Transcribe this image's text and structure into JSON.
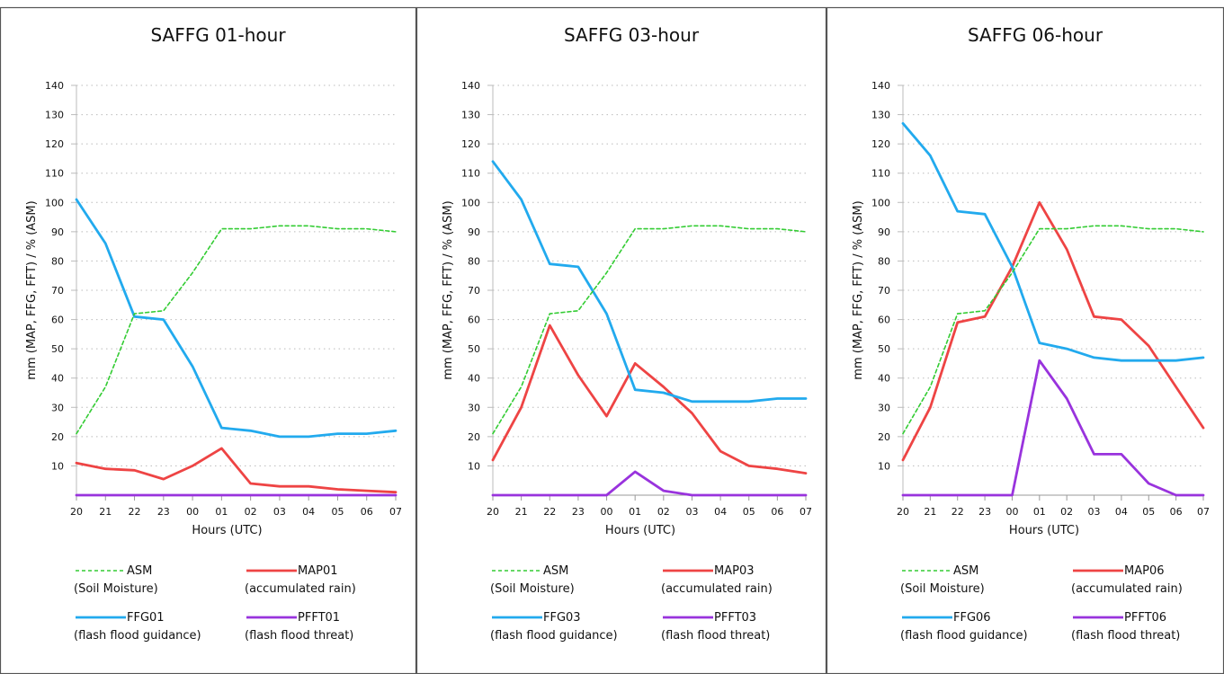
{
  "layout": {
    "columns": 3
  },
  "chart_data": [
    {
      "type": "line",
      "title": "SAFFG 01-hour",
      "xlabel": "Hours (UTC)",
      "ylabel": "mm (MAP, FFG, FFT) / % (ASM)",
      "categories": [
        "20",
        "21",
        "22",
        "23",
        "00",
        "01",
        "02",
        "03",
        "04",
        "05",
        "06",
        "07"
      ],
      "ylim": [
        0,
        140
      ],
      "yticks": [
        10,
        20,
        30,
        40,
        50,
        60,
        70,
        80,
        90,
        100,
        110,
        120,
        130,
        140
      ],
      "grid": "horizontal dotted",
      "series": [
        {
          "key": "asm",
          "name": "ASM",
          "desc": "(Soil Moisture)",
          "color": "#33cc33",
          "dashed": true,
          "values": [
            21,
            37,
            62,
            63,
            76,
            91,
            91,
            92,
            92,
            91,
            91,
            90
          ]
        },
        {
          "key": "map",
          "name": "MAP01",
          "desc": "(accumulated rain)",
          "color": "#ee4444",
          "dashed": false,
          "values": [
            11,
            9,
            8.5,
            5.5,
            10,
            16,
            4,
            3,
            3,
            2,
            1.5,
            1
          ]
        },
        {
          "key": "ffg",
          "name": "FFG01",
          "desc": "(flash flood guidance)",
          "color": "#22aaee",
          "dashed": false,
          "values": [
            101,
            86,
            61,
            60,
            44,
            23,
            22,
            20,
            20,
            21,
            21,
            22
          ]
        },
        {
          "key": "pfft",
          "name": "PFFT01",
          "desc": "(flash flood threat)",
          "color": "#9933dd",
          "dashed": false,
          "values": [
            0,
            0,
            0,
            0,
            0,
            0,
            0,
            0,
            0,
            0,
            0,
            0
          ]
        }
      ]
    },
    {
      "type": "line",
      "title": "SAFFG 03-hour",
      "xlabel": "Hours (UTC)",
      "ylabel": "mm (MAP, FFG, FFT) / % (ASM)",
      "categories": [
        "20",
        "21",
        "22",
        "23",
        "00",
        "01",
        "02",
        "03",
        "04",
        "05",
        "06",
        "07"
      ],
      "ylim": [
        0,
        140
      ],
      "yticks": [
        10,
        20,
        30,
        40,
        50,
        60,
        70,
        80,
        90,
        100,
        110,
        120,
        130,
        140
      ],
      "grid": "horizontal dotted",
      "series": [
        {
          "key": "asm",
          "name": "ASM",
          "desc": "(Soil Moisture)",
          "color": "#33cc33",
          "dashed": true,
          "values": [
            21,
            37,
            62,
            63,
            76,
            91,
            91,
            92,
            92,
            91,
            91,
            90
          ]
        },
        {
          "key": "map",
          "name": "MAP03",
          "desc": "(accumulated rain)",
          "color": "#ee4444",
          "dashed": false,
          "values": [
            12,
            30,
            58,
            41,
            27,
            45,
            37,
            28,
            15,
            10,
            9,
            7.5
          ]
        },
        {
          "key": "ffg",
          "name": "FFG03",
          "desc": "(flash flood guidance)",
          "color": "#22aaee",
          "dashed": false,
          "values": [
            114,
            101,
            79,
            78,
            62,
            36,
            35,
            32,
            32,
            32,
            33,
            33
          ]
        },
        {
          "key": "pfft",
          "name": "PFFT03",
          "desc": "(flash flood threat)",
          "color": "#9933dd",
          "dashed": false,
          "values": [
            0,
            0,
            0,
            0,
            0,
            8,
            1.5,
            0,
            0,
            0,
            0,
            0
          ]
        }
      ]
    },
    {
      "type": "line",
      "title": "SAFFG 06-hour",
      "xlabel": "Hours (UTC)",
      "ylabel": "mm (MAP, FFG, FFT) / % (ASM)",
      "categories": [
        "20",
        "21",
        "22",
        "23",
        "00",
        "01",
        "02",
        "03",
        "04",
        "05",
        "06",
        "07"
      ],
      "ylim": [
        0,
        140
      ],
      "yticks": [
        10,
        20,
        30,
        40,
        50,
        60,
        70,
        80,
        90,
        100,
        110,
        120,
        130,
        140
      ],
      "grid": "horizontal dotted",
      "series": [
        {
          "key": "asm",
          "name": "ASM",
          "desc": "(Soil Moisture)",
          "color": "#33cc33",
          "dashed": true,
          "values": [
            21,
            37,
            62,
            63,
            76,
            91,
            91,
            92,
            92,
            91,
            91,
            90
          ]
        },
        {
          "key": "map",
          "name": "MAP06",
          "desc": "(accumulated rain)",
          "color": "#ee4444",
          "dashed": false,
          "values": [
            12,
            30,
            59,
            61,
            78,
            100,
            84,
            61,
            60,
            51,
            37,
            23
          ]
        },
        {
          "key": "ffg",
          "name": "FFG06",
          "desc": "(flash flood guidance)",
          "color": "#22aaee",
          "dashed": false,
          "values": [
            127,
            116,
            97,
            96,
            78,
            52,
            50,
            47,
            46,
            46,
            46,
            47
          ]
        },
        {
          "key": "pfft",
          "name": "PFFT06",
          "desc": "(flash flood threat)",
          "color": "#9933dd",
          "dashed": false,
          "values": [
            0,
            0,
            0,
            0,
            0,
            46,
            33,
            14,
            14,
            4,
            0,
            0
          ]
        }
      ]
    }
  ]
}
